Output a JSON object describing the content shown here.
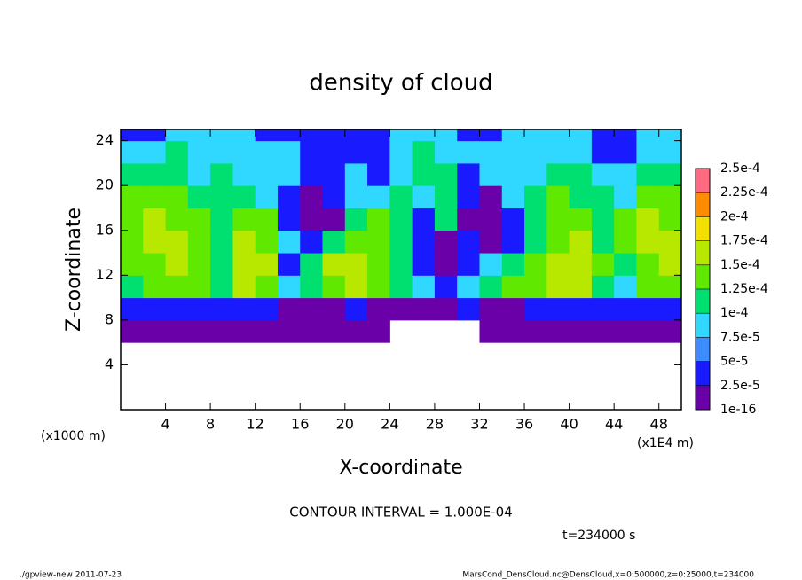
{
  "chart_data": {
    "type": "heatmap",
    "title": "density of cloud",
    "x_label": "X-coordinate",
    "y_label": "Z-coordinate",
    "x_unit_left": "(x1000 m)",
    "x_unit_right": "(x1E4 m)",
    "contour_note": "CONTOUR INTERVAL = 1.000E-04",
    "time_note": "t=234000 s",
    "footer_left": "./gpview-new  2011-07-23",
    "footer_right": "MarsCond_DensCloud.nc@DensCloud,x=0:500000,z=0:25000,t=234000",
    "xlim": [
      0,
      50
    ],
    "xticks": [
      4,
      8,
      12,
      16,
      20,
      24,
      28,
      32,
      36,
      40,
      44,
      48
    ],
    "ylim": [
      0,
      25
    ],
    "yticks": [
      4,
      8,
      12,
      16,
      20,
      24
    ],
    "xbins": [
      0,
      2,
      4,
      6,
      8,
      10,
      12,
      14,
      16,
      18,
      20,
      22,
      24,
      26,
      28,
      30,
      32,
      34,
      36,
      38,
      40,
      42,
      44,
      46,
      48,
      50
    ],
    "ybins": [
      0,
      6,
      8,
      10,
      12,
      14,
      16,
      18,
      20,
      22,
      24,
      25
    ],
    "values": [
      [
        null,
        null,
        null,
        null,
        null,
        null,
        null,
        null,
        null,
        null,
        null,
        null,
        null,
        null,
        null,
        null,
        null,
        null,
        null,
        null,
        null,
        null,
        null,
        null,
        null
      ],
      [
        1e-05,
        1e-05,
        1e-05,
        1e-05,
        1e-05,
        1e-05,
        1e-05,
        1e-05,
        1e-05,
        1e-05,
        1e-05,
        1e-05,
        null,
        null,
        null,
        null,
        1e-05,
        1e-05,
        1e-05,
        1e-05,
        1e-05,
        1e-05,
        1e-05,
        1e-05,
        1e-05
      ],
      [
        4e-05,
        4e-05,
        4e-05,
        4e-05,
        4e-05,
        4e-05,
        4e-05,
        1e-05,
        1e-05,
        1e-05,
        4e-05,
        1e-05,
        1e-05,
        1e-05,
        1e-05,
        4e-05,
        1e-05,
        1e-05,
        4e-05,
        4e-05,
        4e-05,
        4e-05,
        4e-05,
        4e-05,
        4e-05
      ],
      [
        0.00012,
        0.00014,
        0.00014,
        0.00014,
        0.00012,
        0.00016,
        0.00014,
        8e-05,
        0.00012,
        0.00014,
        0.00016,
        0.00014,
        0.00012,
        8e-05,
        4e-05,
        8e-05,
        0.00012,
        0.00014,
        0.00014,
        0.00016,
        0.00016,
        0.00012,
        8e-05,
        0.00014,
        0.00014
      ],
      [
        0.00014,
        0.00014,
        0.00016,
        0.00014,
        0.00012,
        0.00016,
        0.00016,
        4e-05,
        0.00012,
        0.00016,
        0.00016,
        0.00014,
        0.00012,
        4e-05,
        1e-05,
        4e-05,
        8e-05,
        0.00012,
        0.00014,
        0.00016,
        0.00016,
        0.00014,
        0.00012,
        0.00014,
        0.00016
      ],
      [
        0.00014,
        0.00016,
        0.00016,
        0.00014,
        0.00012,
        0.00016,
        0.00014,
        8e-05,
        4e-05,
        0.00012,
        0.00014,
        0.00014,
        0.00012,
        4e-05,
        1e-05,
        4e-05,
        1e-05,
        4e-05,
        0.00012,
        0.00014,
        0.00016,
        0.00012,
        0.00014,
        0.00016,
        0.00016
      ],
      [
        0.00014,
        0.00016,
        0.00014,
        0.00014,
        0.00012,
        0.00014,
        0.00014,
        4e-05,
        1e-05,
        1e-05,
        0.00012,
        0.00014,
        0.00012,
        4e-05,
        0.00012,
        1e-05,
        1e-05,
        4e-05,
        0.00012,
        0.00014,
        0.00014,
        0.00012,
        0.00014,
        0.00016,
        0.00014
      ],
      [
        0.00014,
        0.00014,
        0.00014,
        0.00012,
        0.00012,
        0.00012,
        8e-05,
        4e-05,
        1e-05,
        4e-05,
        8e-05,
        8e-05,
        0.00012,
        8e-05,
        0.00012,
        4e-05,
        1e-05,
        8e-05,
        0.00012,
        0.00014,
        0.00012,
        0.00012,
        8e-05,
        0.00014,
        0.00014
      ],
      [
        0.00012,
        0.00012,
        0.00012,
        8e-05,
        0.00012,
        8e-05,
        8e-05,
        8e-05,
        4e-05,
        4e-05,
        8e-05,
        4e-05,
        8e-05,
        0.00012,
        0.00012,
        4e-05,
        8e-05,
        8e-05,
        8e-05,
        0.00012,
        0.00012,
        8e-05,
        8e-05,
        0.00012,
        0.00012
      ],
      [
        8e-05,
        8e-05,
        0.00012,
        8e-05,
        8e-05,
        8e-05,
        8e-05,
        8e-05,
        4e-05,
        4e-05,
        4e-05,
        4e-05,
        8e-05,
        0.00012,
        8e-05,
        8e-05,
        8e-05,
        8e-05,
        8e-05,
        8e-05,
        8e-05,
        4e-05,
        4e-05,
        8e-05,
        8e-05
      ],
      [
        4e-05,
        4e-05,
        8e-05,
        8e-05,
        8e-05,
        8e-05,
        4e-05,
        4e-05,
        4e-05,
        4e-05,
        4e-05,
        4e-05,
        8e-05,
        8e-05,
        8e-05,
        4e-05,
        4e-05,
        8e-05,
        8e-05,
        8e-05,
        8e-05,
        4e-05,
        4e-05,
        8e-05,
        8e-05
      ]
    ],
    "clim": [
      1e-16,
      0.00025
    ],
    "cticks": [
      {
        "value": 1e-16,
        "label": "1e-16"
      },
      {
        "value": 2.5e-05,
        "label": "2.5e-5"
      },
      {
        "value": 5e-05,
        "label": "5e-5"
      },
      {
        "value": 7.5e-05,
        "label": "7.5e-5"
      },
      {
        "value": 0.0001,
        "label": "1e-4"
      },
      {
        "value": 0.000125,
        "label": "1.25e-4"
      },
      {
        "value": 0.00015,
        "label": "1.5e-4"
      },
      {
        "value": 0.000175,
        "label": "1.75e-4"
      },
      {
        "value": 0.0002,
        "label": "2e-4"
      },
      {
        "value": 0.000225,
        "label": "2.25e-4"
      },
      {
        "value": 0.00025,
        "label": "2.5e-4"
      }
    ],
    "colors": [
      "#6a00a8",
      "#1a1aff",
      "#3c8cff",
      "#30d8ff",
      "#00e070",
      "#60e800",
      "#b8e800",
      "#f4e000",
      "#ff8c00",
      "#ff6a80"
    ]
  }
}
